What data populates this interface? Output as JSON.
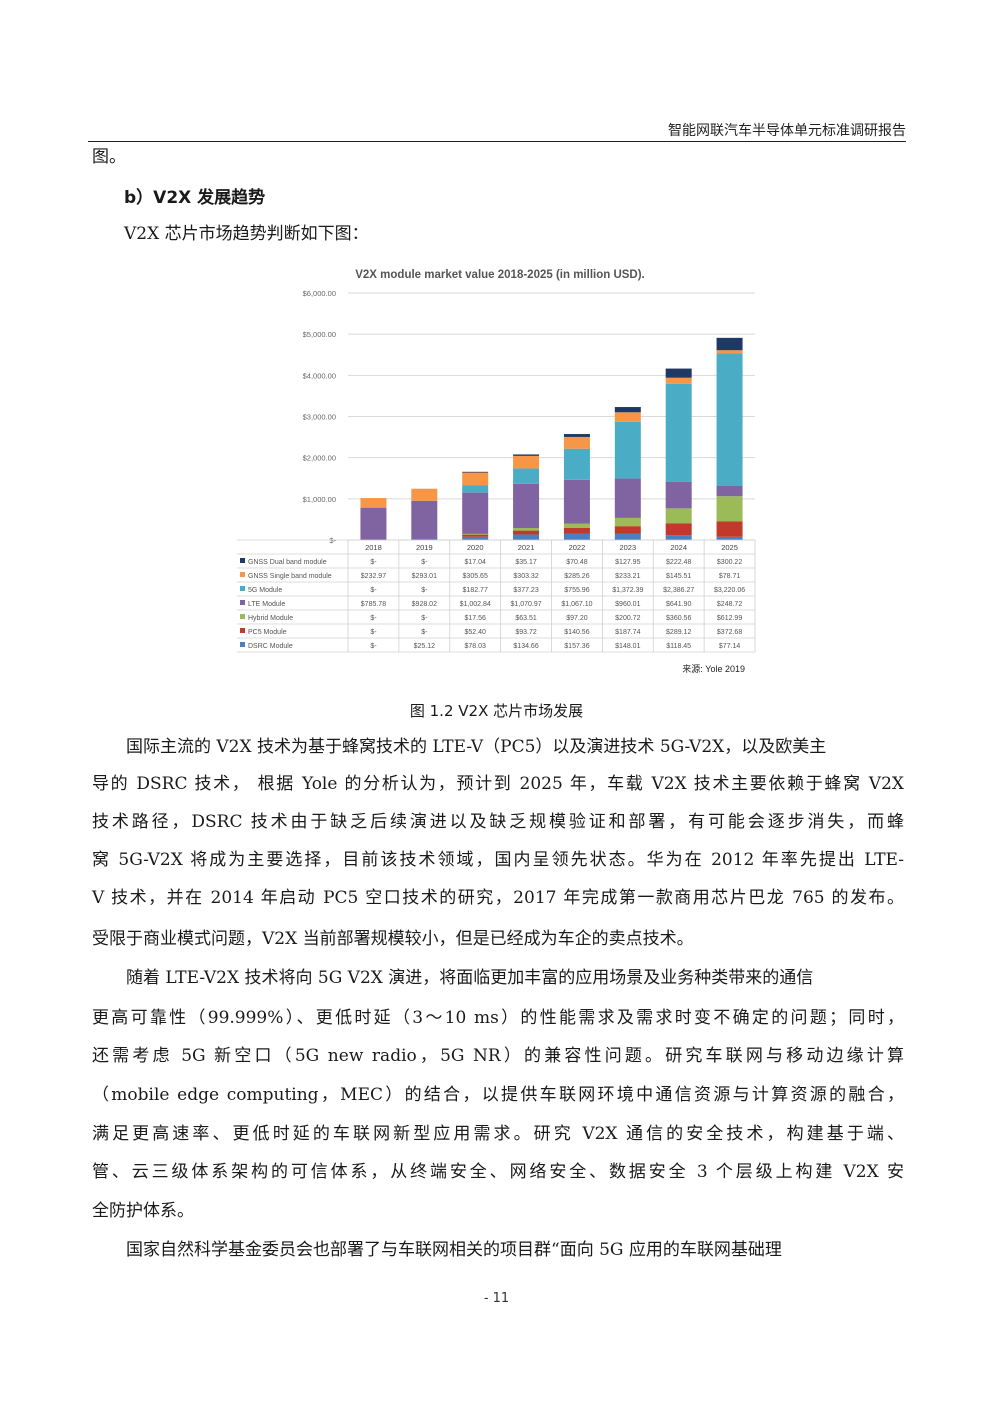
{
  "header": {
    "title": "智能网联汽车半导体单元标准调研报告"
  },
  "intro_fragment": "图。",
  "section": {
    "heading": "b）V2X 发展趋势",
    "intro": "V2X 芯片市场趋势判断如下图："
  },
  "figure": {
    "caption": "图 1.2 V2X 芯片市场发展",
    "source": "来源: Yole 2019"
  },
  "chart_data": {
    "type": "bar",
    "stacked": true,
    "title": "V2X module market value 2018-2025 (in million USD).",
    "categories": [
      "2018",
      "2019",
      "2020",
      "2021",
      "2022",
      "2023",
      "2024",
      "2025"
    ],
    "ylim": [
      0,
      6000
    ],
    "y_ticks": [
      "$-",
      "$1,000.00",
      "$2,000.00",
      "$3,000.00",
      "$4,000.00",
      "$5,000.00",
      "$6,000.00"
    ],
    "grid": true,
    "legend": "table-below",
    "series": [
      {
        "name": "DSRC Module",
        "color": "#4a7fc1",
        "values": [
          0,
          25.12,
          78.03,
          134.66,
          157.36,
          148.01,
          118.45,
          77.14
        ],
        "labels": [
          "$-",
          "$25.12",
          "$78.03",
          "$134.66",
          "$157.36",
          "$148.01",
          "$118.45",
          "$77.14"
        ]
      },
      {
        "name": "PC5 Module",
        "color": "#c0392b",
        "values": [
          0,
          0,
          52.4,
          93.72,
          140.56,
          187.74,
          289.12,
          372.68
        ],
        "labels": [
          "$-",
          "$-",
          "$52.40",
          "$93.72",
          "$140.56",
          "$187.74",
          "$289.12",
          "$372.68"
        ]
      },
      {
        "name": "Hybrid Module",
        "color": "#9bbb59",
        "values": [
          0,
          0,
          17.56,
          63.51,
          97.2,
          200.72,
          360.56,
          612.99
        ],
        "labels": [
          "$-",
          "$-",
          "$17.56",
          "$63.51",
          "$97.20",
          "$200.72",
          "$360.56",
          "$612.99"
        ]
      },
      {
        "name": "LTE Module",
        "color": "#8064a2",
        "values": [
          785.78,
          928.02,
          1002.84,
          1070.97,
          1067.1,
          960.01,
          641.9,
          248.72
        ],
        "labels": [
          "$785.78",
          "$928.02",
          "$1,002.84",
          "$1,070.97",
          "$1,067.10",
          "$960.01",
          "$641.90",
          "$248.72"
        ]
      },
      {
        "name": "5G Module",
        "color": "#4bacc6",
        "values": [
          0,
          0,
          182.77,
          377.23,
          755.96,
          1372.39,
          2386.27,
          3220.06
        ],
        "labels": [
          "$-",
          "$-",
          "$182.77",
          "$377.23",
          "$755.96",
          "$1,372.39",
          "$2,386.27",
          "$3,220.06"
        ]
      },
      {
        "name": "GNSS Single band module",
        "color": "#f79646",
        "values": [
          232.97,
          293.01,
          305.65,
          303.32,
          285.26,
          233.21,
          145.51,
          78.71
        ],
        "labels": [
          "$232.97",
          "$293.01",
          "$305.65",
          "$303.32",
          "$285.26",
          "$233.21",
          "$145.51",
          "$78.71"
        ]
      },
      {
        "name": "GNSS Dual band module",
        "color": "#1f3864",
        "values": [
          0,
          0,
          17.04,
          35.17,
          70.48,
          127.95,
          222.48,
          300.22
        ],
        "labels": [
          "$-",
          "$-",
          "$17.04",
          "$35.17",
          "$70.48",
          "$127.95",
          "$222.48",
          "$300.22"
        ]
      }
    ]
  },
  "body": {
    "p1": [
      "国际主流的 V2X 技术为基于蜂窝技术的 LTE-V（PC5）以及演进技术 5G-V2X，以及欧美主",
      "导的 DSRC 技术， 根据 Yole 的分析认为，预计到 2025 年，车载 V2X 技术主要依赖于蜂窝 V2X",
      "技术路径，DSRC 技术由于缺乏后续演进以及缺乏规模验证和部署，有可能会逐步消失，而蜂",
      "窝 5G-V2X 将成为主要选择，目前该技术领域，国内呈领先状态。华为在 2012 年率先提出 LTE-",
      "V 技术，并在 2014 年启动 PC5 空口技术的研究，2017 年完成第一款商用芯片巴龙 765 的发布。",
      "受限于商业模式问题，V2X 当前部署规模较小，但是已经成为车企的卖点技术。"
    ],
    "p2": [
      "随着 LTE-V2X 技术将向 5G  V2X 演进，将面临更加丰富的应用场景及业务种类带来的通信",
      "更高可靠性（99.999%）、更低时延（3～10  ms）的性能需求及需求时变不确定的问题；同时，",
      "还需考虑 5G 新空口（5G  new  radio，5G  NR）的兼容性问题。研究车联网与移动边缘计算",
      "（mobile  edge  computing，MEC）的结合，以提供车联网环境中通信资源与计算资源的融合，",
      "满足更高速率、更低时延的车联网新型应用需求。研究 V2X 通信的安全技术，构建基于端、",
      "管、云三级体系架构的可信体系，从终端安全、网络安全、数据安全  3 个层级上构建 V2X 安",
      "全防护体系。"
    ],
    "p3": [
      "国家自然科学基金委员会也部署了与车联网相关的项目群“面向 5G 应用的车联网基础理"
    ]
  },
  "footer": {
    "page": "- 11"
  }
}
